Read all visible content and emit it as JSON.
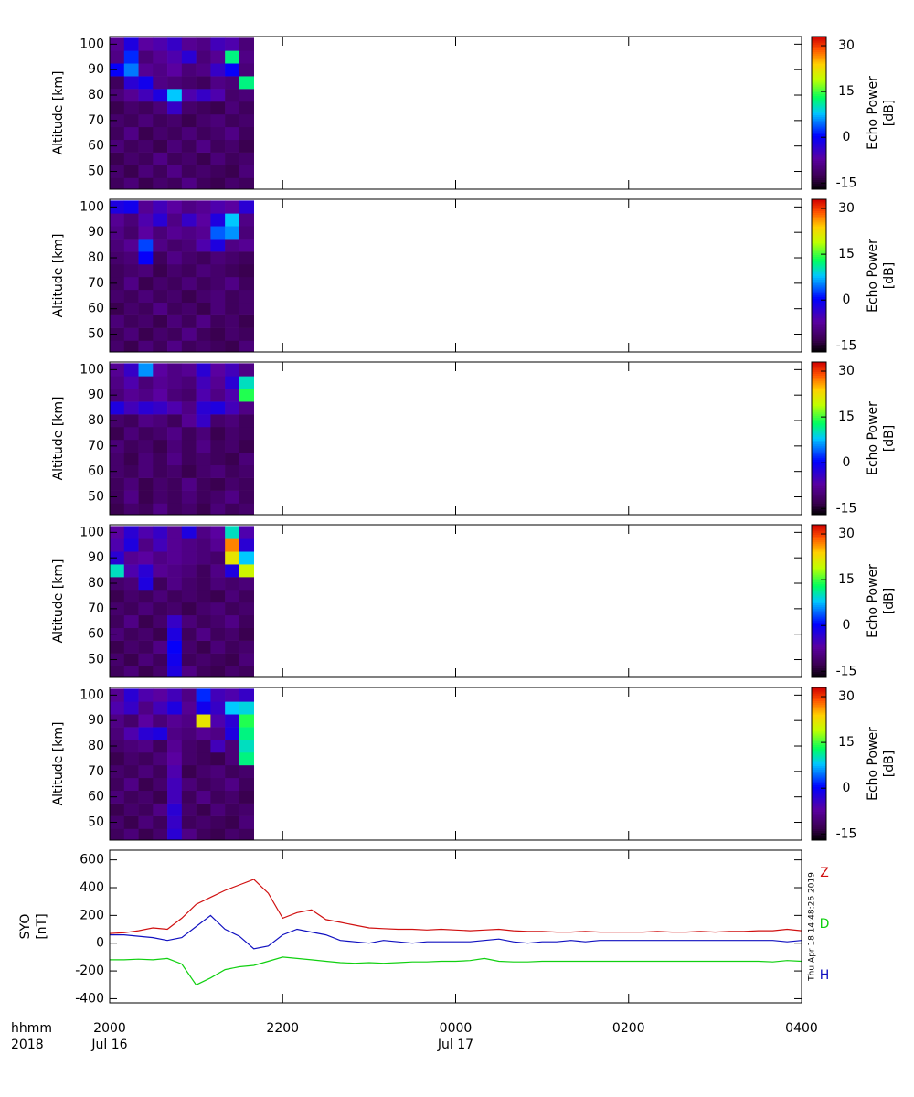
{
  "chart_data": [
    {
      "type": "heatmap",
      "ylabel": "Altitude [km]",
      "ylim": [
        43,
        103
      ],
      "yticks": [
        50,
        60,
        70,
        80,
        90,
        100
      ],
      "xlim": [
        "2000",
        "0400"
      ],
      "time_bins": [
        "2000",
        "2010",
        "2020",
        "2030",
        "2040",
        "2050",
        "2100",
        "2110",
        "2120",
        "2130",
        "2140"
      ],
      "altitude_bins": [
        42.5,
        47.5,
        52.5,
        57.5,
        62.5,
        67.5,
        72.5,
        77.5,
        82.5,
        87.5,
        92.5,
        97.5,
        102.5
      ],
      "colorbar": {
        "label": [
          "Echo Power",
          "[dB]"
        ],
        "lim": [
          -17,
          33
        ],
        "ticks": [
          -15,
          0,
          15,
          30
        ]
      },
      "values": [
        [
          -12,
          -10,
          -13,
          -11,
          -12,
          -9,
          -12,
          -13,
          -11,
          -12
        ],
        [
          -11,
          -13,
          -10,
          -12,
          -9,
          -12,
          -11,
          -12,
          -13,
          -10
        ],
        [
          -13,
          -11,
          -12,
          -9,
          -12,
          -11,
          -13,
          -10,
          -12,
          -11
        ],
        [
          -10,
          -12,
          -11,
          -13,
          -10,
          -12,
          -9,
          -12,
          -11,
          -13
        ],
        [
          -12,
          -9,
          -13,
          -11,
          -12,
          -10,
          -12,
          -11,
          -9,
          -12
        ],
        [
          -11,
          -12,
          -10,
          -12,
          -11,
          -13,
          -11,
          -10,
          -12,
          -11
        ],
        [
          -13,
          -11,
          -12,
          -10,
          -4,
          -11,
          -12,
          -13,
          -10,
          -12
        ],
        [
          -10,
          -8,
          -5,
          -2,
          8,
          -6,
          -4,
          -6,
          -11,
          -10
        ],
        [
          -12,
          -3,
          -1,
          -9,
          -10,
          -11,
          -12,
          -9,
          -10,
          12
        ],
        [
          0,
          5,
          -8,
          -9,
          -7,
          -10,
          -9,
          -4,
          0,
          -10
        ],
        [
          -9,
          2,
          -10,
          -8,
          -6,
          -3,
          -10,
          -8,
          12,
          -9
        ],
        [
          -8,
          -2,
          -7,
          -6,
          -4,
          -8,
          -9,
          -5,
          -6,
          -10
        ]
      ]
    },
    {
      "type": "heatmap",
      "ylabel": "Altitude [km]",
      "ylim": [
        43,
        103
      ],
      "yticks": [
        50,
        60,
        70,
        80,
        90,
        100
      ],
      "xlim": [
        "2000",
        "0400"
      ],
      "time_bins": [
        "2000",
        "2010",
        "2020",
        "2030",
        "2040",
        "2050",
        "2100",
        "2110",
        "2120",
        "2130",
        "2140"
      ],
      "altitude_bins": [
        42.5,
        47.5,
        52.5,
        57.5,
        62.5,
        67.5,
        72.5,
        77.5,
        82.5,
        87.5,
        92.5,
        97.5,
        102.5
      ],
      "colorbar": {
        "label": [
          "Echo Power",
          "[dB]"
        ],
        "lim": [
          -17,
          33
        ],
        "ticks": [
          -15,
          0,
          15,
          30
        ]
      },
      "values": [
        [
          -11,
          -13,
          -10,
          -12,
          -9,
          -12,
          -11,
          -12,
          -13,
          -10
        ],
        [
          -12,
          -10,
          -13,
          -11,
          -12,
          -9,
          -12,
          -13,
          -11,
          -12
        ],
        [
          -10,
          -12,
          -11,
          -13,
          -10,
          -12,
          -9,
          -12,
          -11,
          -13
        ],
        [
          -13,
          -11,
          -12,
          -9,
          -12,
          -11,
          -13,
          -10,
          -12,
          -11
        ],
        [
          -11,
          -12,
          -10,
          -12,
          -11,
          -13,
          -11,
          -10,
          -12,
          -11
        ],
        [
          -12,
          -9,
          -13,
          -11,
          -12,
          -10,
          -12,
          -11,
          -9,
          -12
        ],
        [
          -12,
          -11,
          -10,
          -13,
          -11,
          -12,
          -10,
          -11,
          -12,
          -13
        ],
        [
          -11,
          -10,
          0,
          -12,
          -9,
          -11,
          -12,
          -10,
          -11,
          -12
        ],
        [
          -10,
          -8,
          3,
          -9,
          -11,
          -10,
          -6,
          -2,
          -9,
          -8
        ],
        [
          -9,
          -11,
          -7,
          -10,
          -8,
          -9,
          -8,
          4,
          6,
          -10
        ],
        [
          -8,
          -10,
          -6,
          -3,
          -9,
          -4,
          -7,
          -2,
          8,
          -9
        ],
        [
          -2,
          -1,
          -8,
          -5,
          -7,
          -9,
          -8,
          -6,
          -7,
          -3
        ]
      ]
    },
    {
      "type": "heatmap",
      "ylabel": "Altitude [km]",
      "ylim": [
        43,
        103
      ],
      "yticks": [
        50,
        60,
        70,
        80,
        90,
        100
      ],
      "xlim": [
        "2000",
        "0400"
      ],
      "time_bins": [
        "2000",
        "2010",
        "2020",
        "2030",
        "2040",
        "2050",
        "2100",
        "2110",
        "2120",
        "2130",
        "2140"
      ],
      "altitude_bins": [
        42.5,
        47.5,
        52.5,
        57.5,
        62.5,
        67.5,
        72.5,
        77.5,
        82.5,
        87.5,
        92.5,
        97.5,
        102.5
      ],
      "colorbar": {
        "label": [
          "Echo Power",
          "[dB]"
        ],
        "lim": [
          -17,
          33
        ],
        "ticks": [
          -15,
          0,
          15,
          30
        ]
      },
      "values": [
        [
          -13,
          -11,
          -12,
          -9,
          -12,
          -11,
          -13,
          -10,
          -12,
          -11
        ],
        [
          -12,
          -9,
          -13,
          -11,
          -12,
          -10,
          -12,
          -11,
          -9,
          -12
        ],
        [
          -12,
          -10,
          -13,
          -11,
          -12,
          -9,
          -12,
          -13,
          -11,
          -12
        ],
        [
          -11,
          -12,
          -10,
          -12,
          -11,
          -13,
          -11,
          -10,
          -12,
          -11
        ],
        [
          -11,
          -13,
          -10,
          -12,
          -9,
          -12,
          -11,
          -12,
          -13,
          -10
        ],
        [
          -10,
          -12,
          -11,
          -13,
          -10,
          -12,
          -9,
          -12,
          -11,
          -13
        ],
        [
          -13,
          -10,
          -12,
          -11,
          -9,
          -12,
          -10,
          -13,
          -11,
          -12
        ],
        [
          -11,
          -12,
          -9,
          -10,
          -12,
          -8,
          -4,
          -11,
          -10,
          -12
        ],
        [
          -2,
          -5,
          -3,
          -4,
          -6,
          -9,
          -3,
          -2,
          -5,
          -9
        ],
        [
          -10,
          -8,
          -9,
          -7,
          -10,
          -11,
          -6,
          -9,
          -6,
          14
        ],
        [
          -9,
          -6,
          -10,
          -8,
          -9,
          -10,
          -5,
          -8,
          -3,
          10
        ],
        [
          -8,
          -4,
          6,
          -7,
          -9,
          -8,
          -3,
          -7,
          -5,
          -9
        ]
      ]
    },
    {
      "type": "heatmap",
      "ylabel": "Altitude [km]",
      "ylim": [
        43,
        103
      ],
      "yticks": [
        50,
        60,
        70,
        80,
        90,
        100
      ],
      "xlim": [
        "2000",
        "0400"
      ],
      "time_bins": [
        "2000",
        "2010",
        "2020",
        "2030",
        "2040",
        "2050",
        "2100",
        "2110",
        "2120",
        "2130",
        "2140"
      ],
      "altitude_bins": [
        42.5,
        47.5,
        52.5,
        57.5,
        62.5,
        67.5,
        72.5,
        77.5,
        82.5,
        87.5,
        92.5,
        97.5,
        102.5
      ],
      "colorbar": {
        "label": [
          "Echo Power",
          "[dB]"
        ],
        "lim": [
          -17,
          33
        ],
        "ticks": [
          -15,
          0,
          15,
          30
        ]
      },
      "values": [
        [
          -12,
          -10,
          -13,
          -11,
          -2,
          -9,
          -12,
          -13,
          -11,
          -12
        ],
        [
          -11,
          -13,
          -10,
          -12,
          -1,
          -12,
          -11,
          -12,
          -13,
          -10
        ],
        [
          -13,
          -11,
          -12,
          -9,
          0,
          -11,
          -13,
          -10,
          -12,
          -11
        ],
        [
          -10,
          -12,
          -11,
          -13,
          -2,
          -12,
          -9,
          -12,
          -11,
          -13
        ],
        [
          -12,
          -9,
          -13,
          -11,
          -4,
          -10,
          -12,
          -11,
          -9,
          -12
        ],
        [
          -11,
          -12,
          -10,
          -12,
          -11,
          -13,
          -11,
          -10,
          -12,
          -11
        ],
        [
          -13,
          -11,
          -12,
          -10,
          -12,
          -11,
          -12,
          -13,
          -10,
          -12
        ],
        [
          -11,
          -10,
          -2,
          -12,
          -9,
          -11,
          -12,
          -10,
          -11,
          -10
        ],
        [
          10,
          -6,
          -3,
          -8,
          -9,
          -10,
          -12,
          -9,
          -2,
          20
        ],
        [
          -3,
          -8,
          -7,
          -9,
          -8,
          -9,
          -10,
          -11,
          22,
          8
        ],
        [
          -6,
          -2,
          -9,
          -5,
          -8,
          -9,
          -10,
          -8,
          27,
          -3
        ],
        [
          -7,
          -3,
          -6,
          -4,
          -8,
          -2,
          -9,
          -7,
          10,
          -6
        ]
      ]
    },
    {
      "type": "heatmap",
      "ylabel": "Altitude [km]",
      "ylim": [
        43,
        103
      ],
      "yticks": [
        50,
        60,
        70,
        80,
        90,
        100
      ],
      "xlim": [
        "2000",
        "0400"
      ],
      "time_bins": [
        "2000",
        "2010",
        "2020",
        "2030",
        "2040",
        "2050",
        "2100",
        "2110",
        "2120",
        "2130",
        "2140"
      ],
      "altitude_bins": [
        42.5,
        47.5,
        52.5,
        57.5,
        62.5,
        67.5,
        72.5,
        77.5,
        82.5,
        87.5,
        92.5,
        97.5,
        102.5
      ],
      "colorbar": {
        "label": [
          "Echo Power",
          "[dB]"
        ],
        "lim": [
          -17,
          33
        ],
        "ticks": [
          -15,
          0,
          15,
          30
        ]
      },
      "values": [
        [
          -12,
          -10,
          -13,
          -11,
          -3,
          -9,
          -12,
          -13,
          -11,
          -12
        ],
        [
          -11,
          -13,
          -10,
          -12,
          -4,
          -12,
          -11,
          -12,
          -13,
          -10
        ],
        [
          -13,
          -11,
          -12,
          -9,
          -3,
          -11,
          -13,
          -10,
          -12,
          -11
        ],
        [
          -10,
          -12,
          -11,
          -13,
          -5,
          -12,
          -9,
          -12,
          -11,
          -13
        ],
        [
          -12,
          -9,
          -13,
          -11,
          -5,
          -10,
          -12,
          -11,
          -9,
          -12
        ],
        [
          -11,
          -12,
          -10,
          -12,
          -6,
          -13,
          -11,
          -10,
          -12,
          -11
        ],
        [
          -13,
          -11,
          -12,
          -10,
          -7,
          -11,
          -12,
          -13,
          -10,
          12
        ],
        [
          -11,
          -10,
          -9,
          -12,
          -8,
          -11,
          -12,
          -5,
          -10,
          10
        ],
        [
          -10,
          -6,
          -3,
          -2,
          -9,
          -10,
          -8,
          -9,
          -2,
          12
        ],
        [
          -9,
          -11,
          -7,
          -10,
          -8,
          -9,
          22,
          -6,
          -3,
          14
        ],
        [
          -6,
          -4,
          -9,
          -5,
          -2,
          -8,
          -1,
          -4,
          8,
          9
        ],
        [
          -8,
          -3,
          -6,
          -7,
          -5,
          -9,
          2,
          -5,
          -6,
          -4
        ]
      ]
    },
    {
      "type": "line",
      "ylabel": [
        "SYO",
        "[nT]"
      ],
      "ylim": [
        -430,
        670
      ],
      "yticks": [
        -400,
        -200,
        0,
        200,
        400,
        600
      ],
      "xlim": [
        "2000",
        "0400"
      ],
      "xticks": [
        "2000",
        "2200",
        "0000",
        "0200",
        "0400"
      ],
      "xlabel": "hhmm",
      "year": "2018",
      "date_labels": [
        {
          "at": "2000",
          "label": "Jul 16"
        },
        {
          "at": "0000",
          "label": "Jul 17"
        }
      ],
      "timestamp": "Thu Apr 18 14:48:26 2019",
      "x": [
        "2000",
        "2010",
        "2020",
        "2030",
        "2040",
        "2050",
        "2100",
        "2110",
        "2120",
        "2130",
        "2140",
        "2150",
        "2200",
        "2210",
        "2220",
        "2230",
        "2240",
        "2250",
        "2300",
        "2310",
        "2320",
        "2330",
        "2340",
        "2350",
        "0000",
        "0010",
        "0020",
        "0030",
        "0040",
        "0050",
        "0100",
        "0110",
        "0120",
        "0130",
        "0140",
        "0150",
        "0200",
        "0210",
        "0220",
        "0230",
        "0240",
        "0250",
        "0300",
        "0310",
        "0320",
        "0330",
        "0340",
        "0350",
        "0400"
      ],
      "series": [
        {
          "name": "Z",
          "color": "#d01010",
          "values": [
            70,
            75,
            90,
            110,
            100,
            180,
            280,
            330,
            380,
            420,
            460,
            360,
            180,
            220,
            240,
            170,
            150,
            130,
            110,
            105,
            100,
            100,
            95,
            100,
            95,
            90,
            95,
            100,
            90,
            85,
            85,
            80,
            80,
            85,
            80,
            80,
            80,
            80,
            85,
            80,
            80,
            85,
            80,
            85,
            85,
            90,
            90,
            100,
            90
          ]
        },
        {
          "name": "D",
          "color": "#10d010",
          "values": [
            -120,
            -120,
            -115,
            -120,
            -110,
            -150,
            -300,
            -250,
            -190,
            -170,
            -160,
            -130,
            -100,
            -110,
            -120,
            -130,
            -140,
            -145,
            -140,
            -145,
            -140,
            -135,
            -135,
            -130,
            -130,
            -125,
            -110,
            -130,
            -135,
            -135,
            -130,
            -130,
            -130,
            -130,
            -130,
            -130,
            -130,
            -130,
            -130,
            -130,
            -130,
            -130,
            -130,
            -130,
            -130,
            -130,
            -135,
            -125,
            -130
          ]
        },
        {
          "name": "H",
          "color": "#1010c0",
          "values": [
            60,
            60,
            50,
            40,
            20,
            40,
            120,
            200,
            100,
            50,
            -40,
            -20,
            60,
            100,
            80,
            60,
            20,
            10,
            0,
            20,
            10,
            0,
            10,
            10,
            10,
            10,
            20,
            30,
            10,
            0,
            10,
            10,
            20,
            10,
            20,
            20,
            20,
            20,
            20,
            20,
            20,
            20,
            20,
            20,
            20,
            20,
            20,
            10,
            20
          ]
        }
      ]
    }
  ]
}
